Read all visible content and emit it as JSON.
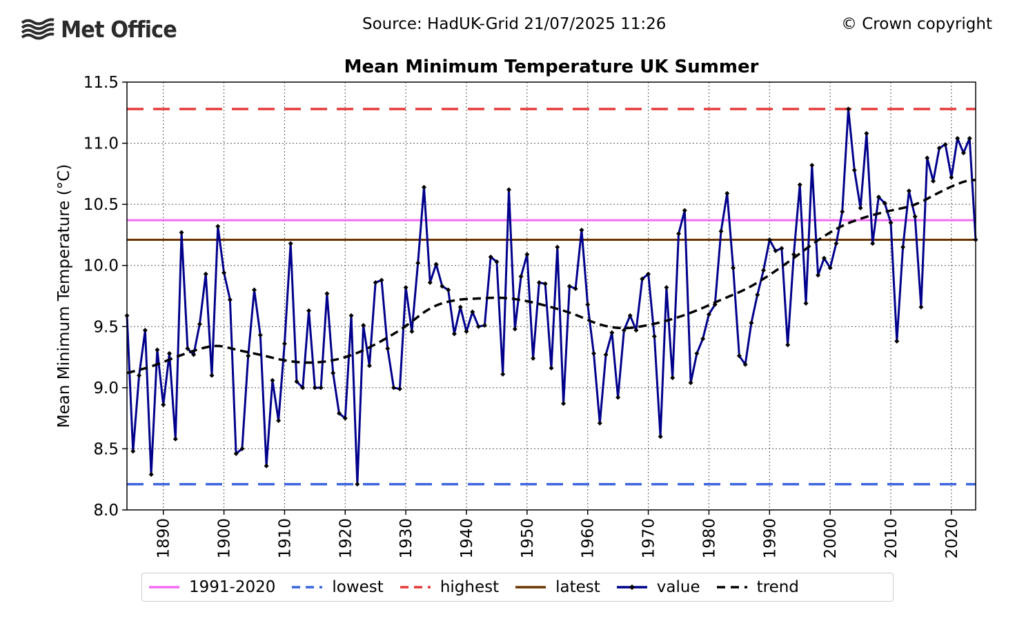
{
  "header": {
    "logo_text": "Met Office",
    "source": "Source: HadUK-Grid 21/07/2025 11:26",
    "copyright": "© Crown copyright"
  },
  "chart_data": {
    "type": "line",
    "title": "Mean Minimum Temperature UK Summer",
    "xlabel": "",
    "ylabel": "Mean Minimum Temperature (°C)",
    "xlim": [
      1884,
      2024
    ],
    "ylim": [
      8.0,
      11.5
    ],
    "xticks": [
      1890,
      1900,
      1910,
      1920,
      1930,
      1940,
      1950,
      1960,
      1970,
      1980,
      1990,
      2000,
      2010,
      2020
    ],
    "yticks": [
      "8.0",
      "8.5",
      "9.0",
      "9.5",
      "10.0",
      "10.5",
      "11.0",
      "11.5"
    ],
    "grid": true,
    "legend_position": "bottom",
    "reference_lines": {
      "climatology_1991_2020": 10.37,
      "lowest": 8.21,
      "highest": 11.28,
      "latest": 10.21
    },
    "colors": {
      "climatology": "#f16df1",
      "lowest": "#3c65e0",
      "highest": "#e63a3a",
      "latest": "#6b3300",
      "value": "#00008b",
      "trend": "#000000"
    },
    "legend": [
      {
        "key": "climatology",
        "label": "1991-2020",
        "style": "solid"
      },
      {
        "key": "lowest",
        "label": "lowest",
        "style": "dashed"
      },
      {
        "key": "highest",
        "label": "highest",
        "style": "dashed"
      },
      {
        "key": "latest",
        "label": "latest",
        "style": "solid"
      },
      {
        "key": "value",
        "label": "value",
        "style": "marker"
      },
      {
        "key": "trend",
        "label": "trend",
        "style": "dashed"
      }
    ],
    "series": [
      {
        "name": "value",
        "x_start": 1884,
        "values": [
          9.59,
          8.48,
          9.1,
          9.47,
          8.29,
          9.31,
          8.86,
          9.28,
          8.58,
          10.27,
          9.32,
          9.27,
          9.52,
          9.93,
          9.1,
          10.32,
          9.94,
          9.72,
          8.46,
          8.5,
          9.26,
          9.8,
          9.43,
          8.36,
          9.06,
          8.73,
          9.36,
          10.18,
          9.05,
          9.0,
          9.63,
          9.0,
          9.0,
          9.77,
          9.12,
          8.79,
          8.75,
          9.59,
          8.21,
          9.51,
          9.18,
          9.86,
          9.88,
          9.32,
          9.0,
          8.99,
          9.82,
          9.46,
          10.02,
          10.64,
          9.86,
          10.01,
          9.83,
          9.8,
          9.44,
          9.66,
          9.46,
          9.62,
          9.5,
          9.51,
          10.07,
          10.03,
          9.11,
          10.62,
          9.48,
          9.91,
          10.09,
          9.24,
          9.86,
          9.85,
          9.16,
          10.15,
          8.87,
          9.83,
          9.81,
          10.29,
          9.68,
          9.28,
          8.71,
          9.27,
          9.45,
          8.92,
          9.47,
          9.59,
          9.47,
          9.89,
          9.93,
          9.42,
          8.6,
          9.82,
          9.08,
          10.26,
          10.45,
          9.04,
          9.28,
          9.4,
          9.6,
          9.68,
          10.28,
          10.59,
          9.98,
          9.26,
          9.19,
          9.53,
          9.76,
          9.96,
          10.21,
          10.12,
          10.14,
          9.35,
          10.09,
          10.66,
          9.69,
          10.82,
          9.92,
          10.06,
          9.98,
          10.18,
          10.44,
          11.28,
          10.78,
          10.47,
          11.08,
          10.18,
          10.56,
          10.51,
          10.35,
          9.38,
          10.15,
          10.61,
          10.4,
          9.66,
          10.88,
          10.69,
          10.96,
          10.99,
          10.72,
          11.04,
          10.92,
          11.04,
          10.21
        ]
      },
      {
        "name": "trend",
        "x": [
          1884,
          1888,
          1892,
          1896,
          1899,
          1902,
          1906,
          1910,
          1914,
          1918,
          1922,
          1926,
          1930,
          1934,
          1938,
          1942,
          1946,
          1950,
          1954,
          1958,
          1962,
          1966,
          1970,
          1974,
          1978,
          1982,
          1986,
          1990,
          1994,
          1998,
          2002,
          2006,
          2010,
          2014,
          2018,
          2022,
          2024
        ],
        "values": [
          9.12,
          9.17,
          9.25,
          9.32,
          9.35,
          9.31,
          9.27,
          9.22,
          9.2,
          9.22,
          9.28,
          9.38,
          9.5,
          9.66,
          9.72,
          9.73,
          9.74,
          9.71,
          9.66,
          9.6,
          9.51,
          9.48,
          9.51,
          9.56,
          9.63,
          9.72,
          9.8,
          9.92,
          10.06,
          10.21,
          10.33,
          10.4,
          10.45,
          10.49,
          10.6,
          10.69,
          10.7
        ]
      }
    ]
  }
}
